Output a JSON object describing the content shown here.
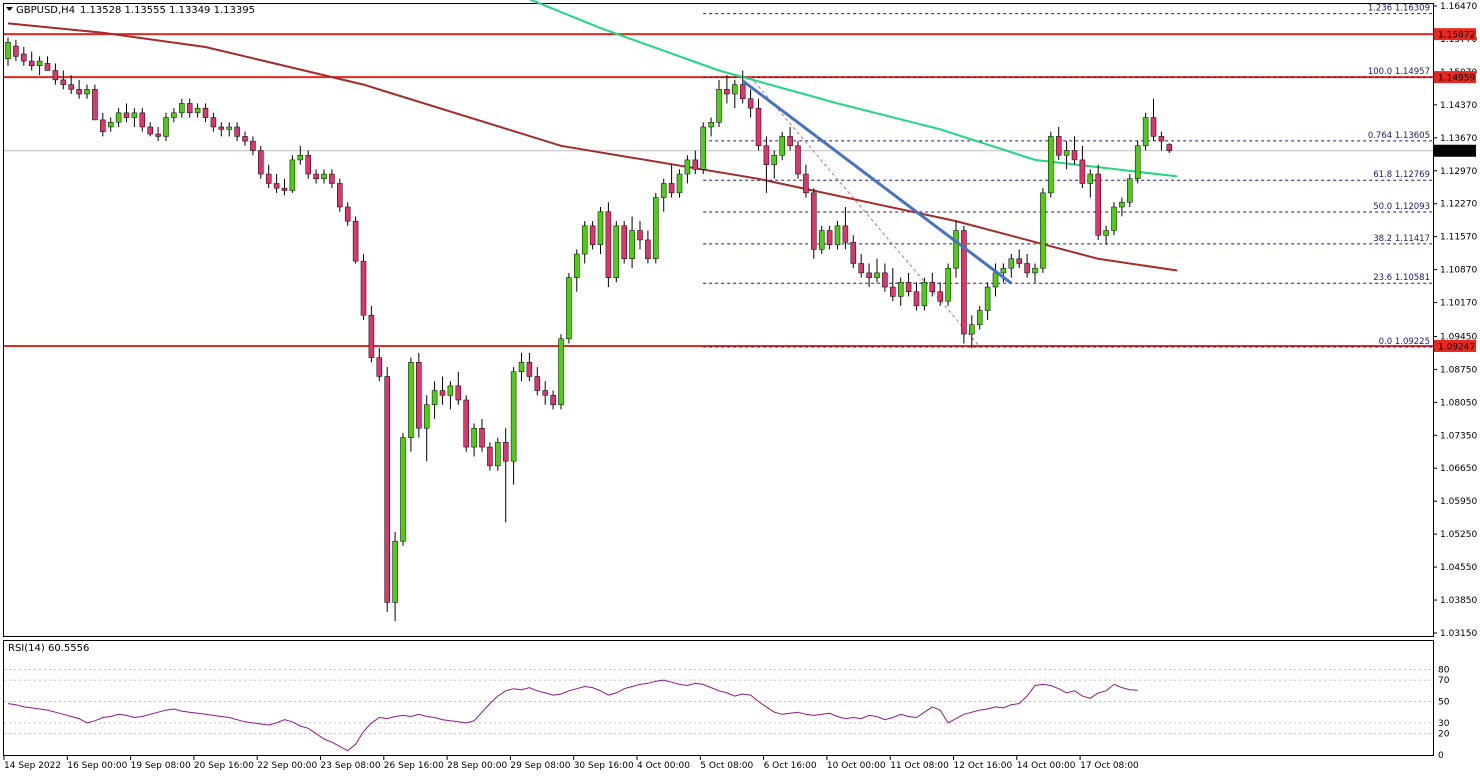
{
  "header": {
    "symbol_label": "GBPUSD,H4",
    "ohlc_label": "1.13528 1.13555 1.13349 1.13395"
  },
  "rsi_panel": {
    "label": "RSI(14) 60.5556",
    "levels": [
      "80",
      "70",
      "50",
      "30",
      "20",
      "0"
    ]
  },
  "colors": {
    "bull": "#4ece12",
    "bear": "#e0346d",
    "ma_long": "#a52a2a",
    "ma_short": "#20d880",
    "trendline": "#4472c4",
    "resistance": "#e8281e",
    "fib": "#1a1a7a",
    "rsi": "#8b1a8b"
  },
  "chart_data": {
    "type": "candlestick",
    "symbol": "GBPUSD",
    "timeframe": "H4",
    "ohlc": {
      "open": 1.13528,
      "high": 1.13555,
      "low": 1.13349,
      "close": 1.13395
    },
    "current_price": "1.13395",
    "y_ticks": [
      "1.16470",
      "1.15770",
      "1.15070",
      "1.14370",
      "1.13670",
      "1.12970",
      "1.12270",
      "1.11570",
      "1.10870",
      "1.10170",
      "1.09450",
      "1.08750",
      "1.08050",
      "1.07350",
      "1.06650",
      "1.05950",
      "1.05250",
      "1.04550",
      "1.03850",
      "1.03150"
    ],
    "ylim": [
      1.0315,
      1.1647
    ],
    "x_labels": [
      "14 Sep 2022",
      "16 Sep 00:00",
      "19 Sep 08:00",
      "20 Sep 16:00",
      "22 Sep 00:00",
      "23 Sep 08:00",
      "26 Sep 16:00",
      "28 Sep 00:00",
      "29 Sep 08:00",
      "30 Sep 16:00",
      "4 Oct 00:00",
      "5 Oct 08:00",
      "6 Oct 16:00",
      "10 Oct 00:00",
      "11 Oct 08:00",
      "12 Oct 16:00",
      "14 Oct 00:00",
      "17 Oct 08:00"
    ],
    "horizontal_levels": [
      {
        "label": "1.15872",
        "value": 1.15872
      },
      {
        "label": "1.14959",
        "value": 1.14959
      },
      {
        "label": "1.09247",
        "value": 1.09247
      }
    ],
    "fibonacci": [
      {
        "label": "1.236 1.16309",
        "value": 1.16309
      },
      {
        "label": "100.0 1.14957",
        "value": 1.14957
      },
      {
        "label": "0.764 1.13605",
        "value": 1.13605
      },
      {
        "label": "61.8 1.12769",
        "value": 1.12769
      },
      {
        "label": "50.0 1.12093",
        "value": 1.12093
      },
      {
        "label": "38.2 1.11417",
        "value": 1.11417
      },
      {
        "label": "23.6 1.10581",
        "value": 1.10581
      },
      {
        "label": "0.0 1.09225",
        "value": 1.09225
      }
    ],
    "candles": [
      [
        1.1535,
        1.158,
        1.152,
        1.157
      ],
      [
        1.1562,
        1.1575,
        1.153,
        1.154
      ],
      [
        1.1545,
        1.156,
        1.152,
        1.153
      ],
      [
        1.153,
        1.155,
        1.151,
        1.152
      ],
      [
        1.152,
        1.154,
        1.15,
        1.153
      ],
      [
        1.1525,
        1.154,
        1.151,
        1.151
      ],
      [
        1.151,
        1.1525,
        1.148,
        1.149
      ],
      [
        1.149,
        1.151,
        1.147,
        1.148
      ],
      [
        1.148,
        1.15,
        1.146,
        1.147
      ],
      [
        1.147,
        1.149,
        1.145,
        1.146
      ],
      [
        1.146,
        1.148,
        1.145,
        1.147
      ],
      [
        1.147,
        1.148,
        1.141,
        1.1405
      ],
      [
        1.1405,
        1.142,
        1.137,
        1.138
      ],
      [
        1.139,
        1.141,
        1.138,
        1.14
      ],
      [
        1.14,
        1.143,
        1.139,
        1.142
      ],
      [
        1.142,
        1.144,
        1.14,
        1.141
      ],
      [
        1.141,
        1.143,
        1.139,
        1.142
      ],
      [
        1.142,
        1.143,
        1.138,
        1.139
      ],
      [
        1.139,
        1.14,
        1.137,
        1.1375
      ],
      [
        1.1375,
        1.139,
        1.136,
        1.137
      ],
      [
        1.137,
        1.142,
        1.136,
        1.141
      ],
      [
        1.141,
        1.143,
        1.14,
        1.142
      ],
      [
        1.142,
        1.145,
        1.141,
        1.144
      ],
      [
        1.144,
        1.145,
        1.141,
        1.142
      ],
      [
        1.142,
        1.144,
        1.141,
        1.143
      ],
      [
        1.143,
        1.144,
        1.14,
        1.141
      ],
      [
        1.141,
        1.142,
        1.138,
        1.139
      ],
      [
        1.139,
        1.14,
        1.137,
        1.1385
      ],
      [
        1.1385,
        1.14,
        1.137,
        1.139
      ],
      [
        1.139,
        1.14,
        1.136,
        1.137
      ],
      [
        1.137,
        1.138,
        1.135,
        1.136
      ],
      [
        1.136,
        1.137,
        1.133,
        1.134
      ],
      [
        1.134,
        1.135,
        1.128,
        1.129
      ],
      [
        1.129,
        1.131,
        1.126,
        1.127
      ],
      [
        1.127,
        1.129,
        1.125,
        1.126
      ],
      [
        1.126,
        1.128,
        1.1245,
        1.1255
      ],
      [
        1.1255,
        1.133,
        1.125,
        1.132
      ],
      [
        1.132,
        1.135,
        1.131,
        1.133
      ],
      [
        1.133,
        1.134,
        1.128,
        1.129
      ],
      [
        1.129,
        1.13,
        1.127,
        1.128
      ],
      [
        1.128,
        1.13,
        1.127,
        1.129
      ],
      [
        1.129,
        1.13,
        1.126,
        1.127
      ],
      [
        1.127,
        1.128,
        1.121,
        1.122
      ],
      [
        1.122,
        1.123,
        1.118,
        1.119
      ],
      [
        1.119,
        1.12,
        1.11,
        1.1105
      ],
      [
        1.1105,
        1.112,
        1.098,
        1.099
      ],
      [
        1.099,
        1.101,
        1.089,
        1.09
      ],
      [
        1.09,
        1.092,
        1.085,
        1.086
      ],
      [
        1.086,
        1.088,
        1.036,
        1.038
      ],
      [
        1.038,
        1.053,
        1.034,
        1.051
      ],
      [
        1.051,
        1.074,
        1.05,
        1.073
      ],
      [
        1.073,
        1.09,
        1.07,
        1.089
      ],
      [
        1.089,
        1.091,
        1.073,
        1.075
      ],
      [
        1.075,
        1.082,
        1.068,
        1.08
      ],
      [
        1.08,
        1.085,
        1.077,
        1.083
      ],
      [
        1.083,
        1.086,
        1.08,
        1.082
      ],
      [
        1.082,
        1.085,
        1.079,
        1.084
      ],
      [
        1.084,
        1.087,
        1.08,
        1.081
      ],
      [
        1.081,
        1.082,
        1.07,
        1.071
      ],
      [
        1.071,
        1.076,
        1.069,
        1.075
      ],
      [
        1.075,
        1.077,
        1.07,
        1.071
      ],
      [
        1.071,
        1.072,
        1.066,
        1.067
      ],
      [
        1.067,
        1.073,
        1.066,
        1.072
      ],
      [
        1.072,
        1.075,
        1.055,
        1.068
      ],
      [
        1.068,
        1.088,
        1.063,
        1.087
      ],
      [
        1.087,
        1.091,
        1.085,
        1.089
      ],
      [
        1.089,
        1.091,
        1.085,
        1.086
      ],
      [
        1.086,
        1.088,
        1.082,
        1.083
      ],
      [
        1.083,
        1.085,
        1.08,
        1.082
      ],
      [
        1.082,
        1.083,
        1.079,
        1.08
      ],
      [
        1.08,
        1.095,
        1.079,
        1.094
      ],
      [
        1.094,
        1.108,
        1.093,
        1.107
      ],
      [
        1.107,
        1.113,
        1.104,
        1.112
      ],
      [
        1.112,
        1.119,
        1.11,
        1.118
      ],
      [
        1.118,
        1.119,
        1.113,
        1.114
      ],
      [
        1.114,
        1.122,
        1.112,
        1.121
      ],
      [
        1.121,
        1.123,
        1.105,
        1.107
      ],
      [
        1.107,
        1.119,
        1.106,
        1.118
      ],
      [
        1.118,
        1.119,
        1.11,
        1.111
      ],
      [
        1.111,
        1.12,
        1.109,
        1.117
      ],
      [
        1.117,
        1.119,
        1.113,
        1.115
      ],
      [
        1.115,
        1.117,
        1.11,
        1.111
      ],
      [
        1.111,
        1.125,
        1.11,
        1.124
      ],
      [
        1.124,
        1.128,
        1.121,
        1.127
      ],
      [
        1.127,
        1.131,
        1.124,
        1.125
      ],
      [
        1.125,
        1.13,
        1.124,
        1.129
      ],
      [
        1.129,
        1.133,
        1.127,
        1.132
      ],
      [
        1.132,
        1.134,
        1.129,
        1.13
      ],
      [
        1.13,
        1.14,
        1.129,
        1.139
      ],
      [
        1.139,
        1.141,
        1.137,
        1.14
      ],
      [
        1.14,
        1.149,
        1.139,
        1.147
      ],
      [
        1.147,
        1.15,
        1.144,
        1.146
      ],
      [
        1.146,
        1.149,
        1.143,
        1.148
      ],
      [
        1.148,
        1.151,
        1.144,
        1.145
      ],
      [
        1.145,
        1.147,
        1.141,
        1.143
      ],
      [
        1.143,
        1.145,
        1.134,
        1.135
      ],
      [
        1.135,
        1.137,
        1.125,
        1.131
      ],
      [
        1.131,
        1.134,
        1.128,
        1.133
      ],
      [
        1.133,
        1.138,
        1.132,
        1.137
      ],
      [
        1.137,
        1.139,
        1.134,
        1.135
      ],
      [
        1.135,
        1.136,
        1.128,
        1.129
      ],
      [
        1.129,
        1.131,
        1.124,
        1.125
      ],
      [
        1.125,
        1.126,
        1.111,
        1.113
      ],
      [
        1.113,
        1.118,
        1.112,
        1.117
      ],
      [
        1.117,
        1.118,
        1.113,
        1.114
      ],
      [
        1.114,
        1.119,
        1.113,
        1.118
      ],
      [
        1.118,
        1.122,
        1.113,
        1.1145
      ],
      [
        1.1145,
        1.116,
        1.109,
        1.11
      ],
      [
        1.11,
        1.112,
        1.107,
        1.108
      ],
      [
        1.108,
        1.11,
        1.105,
        1.107
      ],
      [
        1.107,
        1.111,
        1.106,
        1.108
      ],
      [
        1.108,
        1.11,
        1.104,
        1.105
      ],
      [
        1.105,
        1.109,
        1.102,
        1.103
      ],
      [
        1.103,
        1.107,
        1.101,
        1.106
      ],
      [
        1.106,
        1.108,
        1.103,
        1.104
      ],
      [
        1.104,
        1.106,
        1.1,
        1.101
      ],
      [
        1.101,
        1.107,
        1.1,
        1.106
      ],
      [
        1.106,
        1.108,
        1.103,
        1.104
      ],
      [
        1.104,
        1.106,
        1.101,
        1.102
      ],
      [
        1.102,
        1.11,
        1.101,
        1.109
      ],
      [
        1.109,
        1.119,
        1.107,
        1.117
      ],
      [
        1.117,
        1.118,
        1.093,
        1.095
      ],
      [
        1.095,
        1.099,
        1.092,
        1.097
      ],
      [
        1.097,
        1.101,
        1.096,
        1.1
      ],
      [
        1.1,
        1.106,
        1.098,
        1.105
      ],
      [
        1.105,
        1.11,
        1.103,
        1.108
      ],
      [
        1.108,
        1.11,
        1.106,
        1.109
      ],
      [
        1.109,
        1.112,
        1.107,
        1.111
      ],
      [
        1.111,
        1.113,
        1.109,
        1.11
      ],
      [
        1.11,
        1.112,
        1.107,
        1.108
      ],
      [
        1.108,
        1.11,
        1.106,
        1.109
      ],
      [
        1.109,
        1.126,
        1.108,
        1.125
      ],
      [
        1.125,
        1.138,
        1.124,
        1.137
      ],
      [
        1.137,
        1.139,
        1.132,
        1.133
      ],
      [
        1.133,
        1.136,
        1.13,
        1.134
      ],
      [
        1.134,
        1.137,
        1.131,
        1.132
      ],
      [
        1.132,
        1.135,
        1.126,
        1.127
      ],
      [
        1.127,
        1.13,
        1.124,
        1.129
      ],
      [
        1.129,
        1.131,
        1.115,
        1.116
      ],
      [
        1.116,
        1.118,
        1.114,
        1.117
      ],
      [
        1.117,
        1.123,
        1.116,
        1.122
      ],
      [
        1.122,
        1.124,
        1.12,
        1.123
      ],
      [
        1.123,
        1.129,
        1.122,
        1.128
      ],
      [
        1.128,
        1.136,
        1.127,
        1.135
      ],
      [
        1.135,
        1.142,
        1.134,
        1.141
      ],
      [
        1.141,
        1.145,
        1.136,
        1.137
      ],
      [
        1.137,
        1.138,
        1.134,
        1.136
      ],
      [
        1.13528,
        1.13555,
        1.13349,
        1.13395
      ]
    ],
    "ma_long": [
      [
        0,
        1.161
      ],
      [
        12,
        1.159
      ],
      [
        25,
        1.156
      ],
      [
        45,
        1.148
      ],
      [
        70,
        1.135
      ],
      [
        95,
        1.128
      ],
      [
        120,
        1.119
      ],
      [
        138,
        1.111
      ],
      [
        148,
        1.1085
      ]
    ],
    "ma_short": [
      [
        64,
        1.1675
      ],
      [
        75,
        1.16
      ],
      [
        90,
        1.151
      ],
      [
        105,
        1.144
      ],
      [
        118,
        1.1385
      ],
      [
        130,
        1.132
      ],
      [
        148,
        1.1285
      ]
    ],
    "trendline": [
      [
        93,
        1.1488
      ],
      [
        127,
        1.1058
      ]
    ],
    "fib_anchor": [
      [
        94,
        1.1496
      ],
      [
        123,
        1.0923
      ]
    ],
    "rsi": [
      48,
      47,
      45,
      44,
      43,
      42,
      40,
      38,
      36,
      34,
      30,
      32,
      35,
      36,
      38,
      37,
      35,
      36,
      38,
      40,
      42,
      43,
      41,
      40,
      39,
      38,
      37,
      36,
      35,
      33,
      31,
      30,
      29,
      28,
      30,
      33,
      31,
      27,
      25,
      20,
      15,
      12,
      8,
      4,
      10,
      22,
      30,
      35,
      34,
      36,
      37,
      36,
      38,
      36,
      35,
      33,
      32,
      31,
      30,
      32,
      40,
      48,
      55,
      60,
      62,
      61,
      63,
      60,
      58,
      56,
      57,
      60,
      62,
      64,
      63,
      60,
      56,
      58,
      62,
      64,
      66,
      67,
      69,
      70,
      68,
      66,
      65,
      67,
      66,
      63,
      60,
      58,
      55,
      57,
      56,
      50,
      45,
      40,
      38,
      39,
      40,
      38,
      37,
      38,
      39,
      36,
      34,
      35,
      34,
      37,
      36,
      33,
      35,
      38,
      36,
      35,
      40,
      45,
      42,
      30,
      34,
      38,
      40,
      42,
      43,
      45,
      44,
      47,
      48,
      55,
      65,
      66,
      65,
      62,
      58,
      60,
      55,
      53,
      58,
      60,
      66,
      63,
      61,
      60.5556
    ]
  }
}
